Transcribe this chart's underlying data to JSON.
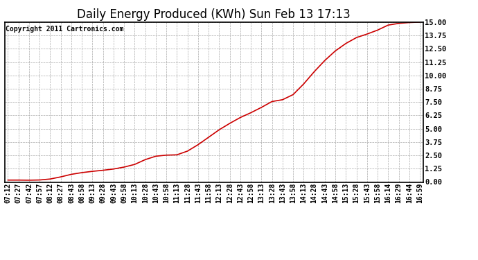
{
  "title": "Daily Energy Produced (KWh) Sun Feb 13 17:13",
  "copyright_text": "Copyright 2011 Cartronics.com",
  "line_color": "#cc0000",
  "background_color": "#ffffff",
  "grid_color": "#aaaaaa",
  "ylim": [
    0,
    15.0
  ],
  "yticks": [
    0.0,
    1.25,
    2.5,
    3.75,
    5.0,
    6.25,
    7.5,
    8.75,
    10.0,
    11.25,
    12.5,
    13.75,
    15.0
  ],
  "x_labels": [
    "07:12",
    "07:27",
    "07:42",
    "07:57",
    "08:12",
    "08:27",
    "08:43",
    "08:58",
    "09:13",
    "09:28",
    "09:43",
    "09:58",
    "10:13",
    "10:28",
    "10:43",
    "10:58",
    "11:13",
    "11:28",
    "11:43",
    "11:58",
    "12:13",
    "12:28",
    "12:43",
    "12:58",
    "13:13",
    "13:28",
    "13:43",
    "13:58",
    "14:13",
    "14:28",
    "14:43",
    "14:58",
    "15:13",
    "15:28",
    "15:43",
    "15:58",
    "16:14",
    "16:29",
    "16:44",
    "16:59"
  ],
  "y_values": [
    0.18,
    0.18,
    0.17,
    0.19,
    0.28,
    0.48,
    0.72,
    0.88,
    1.0,
    1.1,
    1.22,
    1.4,
    1.65,
    2.1,
    2.42,
    2.52,
    2.55,
    2.9,
    3.5,
    4.2,
    4.9,
    5.5,
    6.05,
    6.5,
    7.0,
    7.55,
    7.72,
    8.2,
    9.2,
    10.35,
    11.4,
    12.3,
    13.0,
    13.55,
    13.88,
    14.25,
    14.72,
    14.88,
    14.96,
    15.0
  ],
  "title_fontsize": 12,
  "tick_fontsize": 7,
  "copyright_fontsize": 7
}
